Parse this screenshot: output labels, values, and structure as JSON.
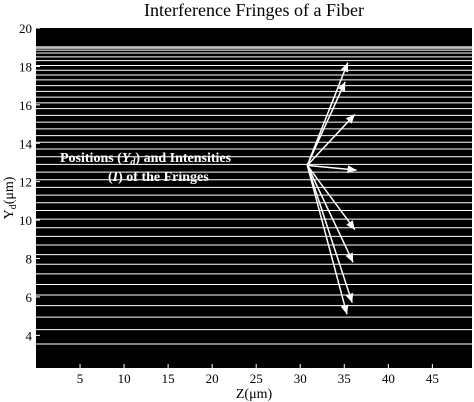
{
  "chart_data": {
    "type": "heatmap",
    "title": "Interference Fringes of a Fiber",
    "xlabel": "Z(μm)",
    "ylabel_main": "Y",
    "ylabel_sub": "d",
    "ylabel_unit": "(μm)",
    "xlim": [
      0,
      49.5
    ],
    "ylim": [
      2.3,
      20
    ],
    "x_ticks": [
      5,
      10,
      15,
      20,
      25,
      30,
      35,
      40,
      45
    ],
    "y_ticks": [
      4,
      6,
      8,
      10,
      12,
      14,
      16,
      18,
      20
    ],
    "background_color": "#000000",
    "fringe_color": "#ffffff",
    "fringes_y": [
      3.55,
      4.3,
      4.95,
      5.55,
      6.1,
      6.65,
      7.2,
      7.7,
      8.2,
      8.7,
      9.15,
      9.6,
      10.05,
      10.5,
      10.9,
      11.3,
      11.7,
      12.1,
      12.5,
      12.9,
      13.3,
      13.7,
      14.05,
      14.4,
      14.75,
      15.1,
      15.45,
      15.8,
      16.1,
      16.4,
      16.7,
      17.0,
      17.3,
      17.55,
      17.8,
      18.05,
      18.3,
      18.5,
      18.7,
      18.85,
      18.95,
      19.02
    ],
    "annotation": {
      "line1_prefix": "Positions (",
      "line1_var": "Y",
      "line1_sub": "d",
      "line1_suffix": ") and Intensities",
      "line2_open": "(",
      "line2_var": "I",
      "line2_suffix": ") of the Fringes",
      "arrow_origin": {
        "x": 30.8,
        "y": 12.85
      },
      "arrow_targets": [
        {
          "x": 35.4,
          "y": 18.2
        },
        {
          "x": 35.1,
          "y": 17.2
        },
        {
          "x": 36.2,
          "y": 15.5
        },
        {
          "x": 36.4,
          "y": 12.6
        },
        {
          "x": 36.2,
          "y": 9.5
        },
        {
          "x": 36.0,
          "y": 7.8
        },
        {
          "x": 35.9,
          "y": 5.7
        },
        {
          "x": 35.3,
          "y": 5.1
        }
      ]
    }
  }
}
